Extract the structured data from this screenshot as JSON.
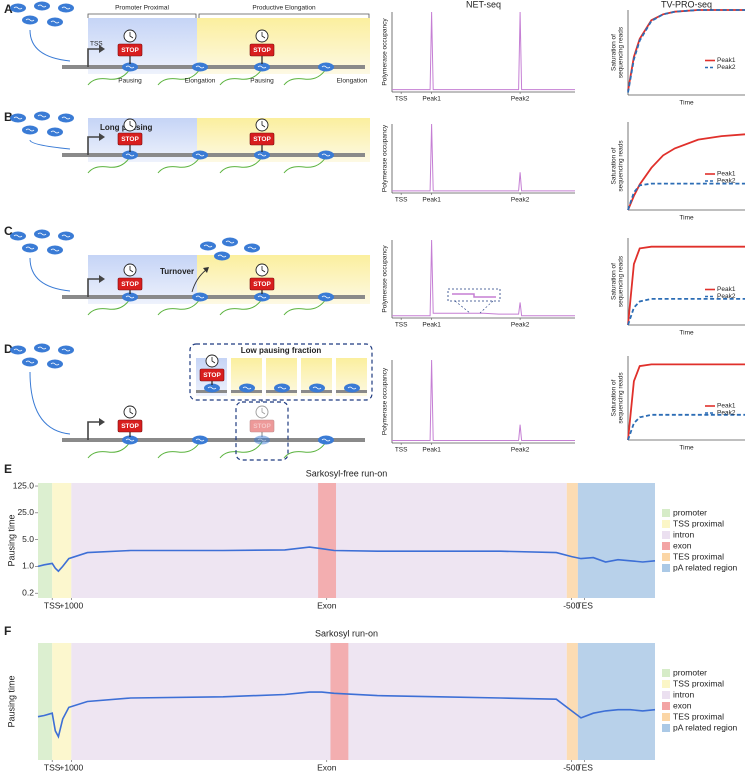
{
  "panel_labels": [
    "A",
    "B",
    "C",
    "D",
    "E",
    "F"
  ],
  "diagrams": [
    {
      "texts": [
        "Promoter Proximal",
        "Productive Elongation",
        "TSS",
        "STOP",
        "STOP",
        "Pausing",
        "Elongation",
        "Pausing",
        "Elongation"
      ]
    },
    {
      "texts": [
        "Long pausing",
        "STOP",
        "STOP"
      ]
    },
    {
      "texts": [
        "Turnover",
        "STOP",
        "STOP"
      ]
    },
    {
      "texts": [
        "Low pausing fraction",
        "STOP",
        "STOP",
        "STOP"
      ]
    }
  ],
  "chart_data": [
    {
      "type": "line",
      "title": "NET-seq",
      "y_label": "Polymerase occupancy",
      "x": [
        0,
        12.5,
        13,
        13.5,
        41.5,
        42,
        42.5,
        60
      ],
      "series": [
        {
          "color": "#c57fd4",
          "values": [
            0.03,
            0.03,
            1,
            0.03,
            0.03,
            1,
            0.03,
            0.03
          ]
        }
      ],
      "xlim": [
        0,
        60
      ],
      "ylim": [
        0,
        1
      ],
      "xticks": [
        {
          "value": 3,
          "label": "TSS"
        },
        {
          "value": 13,
          "label": "Peak1"
        },
        {
          "value": 42,
          "label": "Peak2"
        }
      ]
    },
    {
      "type": "line",
      "title": "TV-PRO-seq",
      "y_label": [
        "Saturation of",
        "sequencing reads"
      ],
      "x_label": "Time",
      "x": [
        0,
        0.5,
        1,
        2,
        3,
        4,
        6,
        8,
        10
      ],
      "series": [
        {
          "name": "Peak1",
          "color": "#e0302b",
          "dashed": false,
          "values": [
            0.05,
            0.45,
            0.66,
            0.88,
            0.95,
            0.98,
            1,
            1,
            1
          ]
        },
        {
          "name": "Peak2",
          "color": "#2c6db5",
          "dashed": true,
          "values": [
            0.03,
            0.42,
            0.64,
            0.87,
            0.95,
            0.98,
            1,
            1,
            1
          ]
        }
      ],
      "xlim": [
        0,
        10
      ],
      "ylim": [
        0,
        1
      ],
      "legend": "right"
    },
    {
      "type": "line",
      "y_label": "Polymerase occupancy",
      "x": [
        0,
        12.5,
        13,
        13.5,
        41.5,
        42,
        42.5,
        60
      ],
      "series": [
        {
          "color": "#c57fd4",
          "values": [
            0.03,
            0.03,
            1,
            0.03,
            0.03,
            0.3,
            0.03,
            0.03
          ]
        }
      ],
      "xlim": [
        0,
        60
      ],
      "ylim": [
        0,
        1
      ],
      "xticks": [
        {
          "value": 3,
          "label": "TSS"
        },
        {
          "value": 13,
          "label": "Peak1"
        },
        {
          "value": 42,
          "label": "Peak2"
        }
      ]
    },
    {
      "type": "line",
      "y_label": [
        "Saturation of",
        "sequencing reads"
      ],
      "x_label": "Time",
      "x": [
        0,
        0.5,
        1,
        2,
        3,
        4,
        6,
        8,
        10
      ],
      "series": [
        {
          "name": "Peak1",
          "color": "#e0302b",
          "dashed": false,
          "values": [
            0,
            0.16,
            0.29,
            0.48,
            0.62,
            0.7,
            0.8,
            0.84,
            0.86
          ]
        },
        {
          "name": "Peak2",
          "color": "#2c6db5",
          "dashed": true,
          "values": [
            0,
            0.2,
            0.28,
            0.3,
            0.3,
            0.3,
            0.3,
            0.3,
            0.3
          ]
        }
      ],
      "xlim": [
        0,
        10
      ],
      "ylim": [
        0,
        1
      ],
      "legend": "right"
    },
    {
      "type": "line",
      "y_label": "Polymerase occupancy",
      "x": [
        0,
        12.5,
        13,
        13.5,
        20,
        30,
        35,
        41.5,
        42,
        42.5,
        60
      ],
      "series": [
        {
          "color": "#c57fd4",
          "values": [
            0.03,
            0.03,
            1,
            0.06,
            0.06,
            0.06,
            0.05,
            0.05,
            0.2,
            0.03,
            0.03
          ]
        }
      ],
      "xlim": [
        0,
        60
      ],
      "ylim": [
        0,
        1
      ],
      "xticks": [
        {
          "value": 3,
          "label": "TSS"
        },
        {
          "value": 13,
          "label": "Peak1"
        },
        {
          "value": 42,
          "label": "Peak2"
        }
      ]
    },
    {
      "type": "line",
      "y_label": [
        "Saturation of",
        "sequencing reads"
      ],
      "x_label": "Time",
      "x": [
        0,
        0.5,
        1,
        2,
        3,
        4,
        6,
        8,
        10
      ],
      "series": [
        {
          "name": "Peak1",
          "color": "#e0302b",
          "dashed": false,
          "values": [
            0,
            0.7,
            0.88,
            0.9,
            0.9,
            0.9,
            0.9,
            0.9,
            0.9
          ]
        },
        {
          "name": "Peak2",
          "color": "#2c6db5",
          "dashed": true,
          "values": [
            0,
            0.2,
            0.27,
            0.3,
            0.3,
            0.3,
            0.3,
            0.3,
            0.3
          ]
        }
      ],
      "xlim": [
        0,
        10
      ],
      "ylim": [
        0,
        1
      ],
      "legend": "right"
    },
    {
      "type": "line",
      "y_label": "Polymerase occupancy",
      "x": [
        0,
        12.5,
        13,
        13.5,
        41.5,
        42,
        42.5,
        60
      ],
      "series": [
        {
          "color": "#c57fd4",
          "values": [
            0.03,
            0.03,
            1,
            0.03,
            0.03,
            0.22,
            0.03,
            0.03
          ]
        }
      ],
      "xlim": [
        0,
        60
      ],
      "ylim": [
        0,
        1
      ],
      "xticks": [
        {
          "value": 3,
          "label": "TSS"
        },
        {
          "value": 13,
          "label": "Peak1"
        },
        {
          "value": 42,
          "label": "Peak2"
        }
      ]
    },
    {
      "type": "line",
      "y_label": [
        "Saturation of",
        "sequencing reads"
      ],
      "x_label": "Time",
      "x": [
        0,
        0.5,
        1,
        2,
        3,
        4,
        6,
        8,
        10
      ],
      "series": [
        {
          "name": "Peak1",
          "color": "#e0302b",
          "dashed": false,
          "values": [
            0,
            0.7,
            0.88,
            0.9,
            0.9,
            0.9,
            0.9,
            0.9,
            0.9
          ]
        },
        {
          "name": "Peak2",
          "color": "#2c6db5",
          "dashed": true,
          "values": [
            0,
            0.2,
            0.27,
            0.3,
            0.3,
            0.3,
            0.3,
            0.3,
            0.3
          ]
        }
      ],
      "xlim": [
        0,
        10
      ],
      "ylim": [
        0,
        1
      ],
      "legend": "right"
    },
    {
      "type": "line",
      "title": "Sarkosyl-free run-on",
      "y_label": "Pausing time",
      "log_y": true,
      "x": [
        0,
        1,
        2.3,
        2.8,
        3.3,
        4,
        5,
        8,
        15,
        30,
        40,
        44,
        46,
        48,
        55,
        65,
        75,
        84,
        86.5,
        88,
        90,
        92,
        94,
        96,
        98,
        100
      ],
      "series": [
        {
          "color": "#3d6fd6",
          "values": [
            1.0,
            1.1,
            1.2,
            0.9,
            0.75,
            1.0,
            1.6,
            2.3,
            2.6,
            2.6,
            2.7,
            3.2,
            2.9,
            2.6,
            2.5,
            2.5,
            2.5,
            2.3,
            1.8,
            1.6,
            1.7,
            1.3,
            1.5,
            1.4,
            1.3,
            1.4
          ]
        }
      ],
      "xlim": [
        0,
        100
      ],
      "ylim": [
        0.15,
        150
      ],
      "yticks": [
        0.2,
        {
          "value": 1,
          "label": "1.0"
        },
        {
          "value": 5,
          "label": "5.0"
        },
        {
          "value": 25,
          "label": "25.0"
        },
        {
          "value": 125,
          "label": "125.0"
        }
      ],
      "xticks": [
        {
          "value": 2.3,
          "label": "TSS"
        },
        {
          "value": 5.4,
          "label": "+1000"
        },
        {
          "value": 46.8,
          "label": "Exon"
        },
        {
          "value": 86.5,
          "label": "-500"
        },
        {
          "value": 88.6,
          "label": "TES"
        }
      ],
      "regions": [
        {
          "name": "promoter",
          "color": "#d6ecc8",
          "x0": 0,
          "x1": 2.3
        },
        {
          "name": "TSS proximal",
          "color": "#fbf6c6",
          "x0": 2.3,
          "x1": 5.4
        },
        {
          "name": "intron",
          "color": "#ebe0f0",
          "x0": 5.4,
          "x1": 85.7
        },
        {
          "name": "exon",
          "color": "#f3a4a4",
          "x0": 45.4,
          "x1": 48.3
        },
        {
          "name": "TES proximal",
          "color": "#fbd6a6",
          "x0": 85.7,
          "x1": 87.5
        },
        {
          "name": "pA related region",
          "color": "#abc9e6",
          "x0": 87.5,
          "x1": 100
        }
      ]
    },
    {
      "type": "line",
      "title": "Sarkosyl run-on",
      "y_label": "Pausing time",
      "x": [
        0,
        1,
        2.3,
        2.8,
        3.3,
        4,
        5,
        8,
        15,
        30,
        40,
        44,
        46,
        48,
        55,
        65,
        75,
        84,
        86.5,
        88,
        90,
        92,
        94,
        96,
        98,
        100
      ],
      "series": [
        {
          "color": "#3d6fd6",
          "values": [
            0.37,
            0.38,
            0.4,
            0.25,
            0.2,
            0.35,
            0.45,
            0.5,
            0.53,
            0.54,
            0.56,
            0.58,
            0.58,
            0.57,
            0.55,
            0.54,
            0.53,
            0.52,
            0.42,
            0.36,
            0.4,
            0.42,
            0.43,
            0.43,
            0.42,
            0.43
          ]
        }
      ],
      "xlim": [
        0,
        100
      ],
      "ylim": [
        0,
        1
      ],
      "xticks": [
        {
          "value": 2.3,
          "label": "TSS"
        },
        {
          "value": 5.4,
          "label": "+1000"
        },
        {
          "value": 46.8,
          "label": "Exon"
        },
        {
          "value": 86.5,
          "label": "-500"
        },
        {
          "value": 88.6,
          "label": "TES"
        }
      ],
      "regions": [
        {
          "name": "promoter",
          "color": "#d6ecc8",
          "x0": 0,
          "x1": 2.3
        },
        {
          "name": "TSS proximal",
          "color": "#fbf6c6",
          "x0": 2.3,
          "x1": 5.4
        },
        {
          "name": "intron",
          "color": "#ebe0f0",
          "x0": 5.4,
          "x1": 85.7
        },
        {
          "name": "exon",
          "color": "#f3a4a4",
          "x0": 47.4,
          "x1": 50.3
        },
        {
          "name": "TES proximal",
          "color": "#fbd6a6",
          "x0": 85.7,
          "x1": 87.5
        },
        {
          "name": "pA related region",
          "color": "#abc9e6",
          "x0": 87.5,
          "x1": 100
        }
      ]
    }
  ]
}
